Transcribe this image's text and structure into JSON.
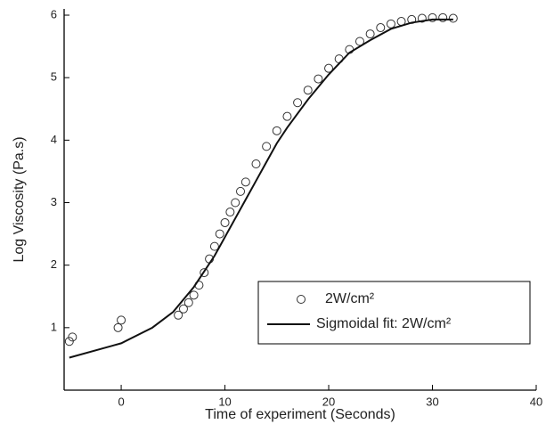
{
  "chart_data": {
    "type": "scatter",
    "x_label": "Time of experiment (Seconds)",
    "y_label": "Log Viscosity (Pa.s)",
    "xlim": [
      -5.5,
      40
    ],
    "xticks": [
      0,
      10,
      20,
      30,
      40
    ],
    "ylim": [
      0,
      6.1
    ],
    "yticks": [
      1,
      2,
      3,
      4,
      5,
      6
    ],
    "legend": "lower right",
    "series": [
      {
        "name": "2W/cm²",
        "type": "scatter",
        "color": "#333333",
        "x": [
          -5,
          -4.7,
          -0.3,
          0,
          5.5,
          6,
          6.5,
          7,
          7.5,
          8,
          8.5,
          9,
          9.5,
          10,
          10.5,
          11,
          11.5,
          12,
          13,
          14,
          15,
          16,
          17,
          18,
          19,
          20,
          21,
          22,
          23,
          24,
          25,
          26,
          27,
          28,
          29,
          30,
          31,
          32
        ],
        "values": [
          0.78,
          0.85,
          1.0,
          1.12,
          1.2,
          1.3,
          1.4,
          1.52,
          1.68,
          1.88,
          2.1,
          2.3,
          2.5,
          2.68,
          2.85,
          3.0,
          3.18,
          3.33,
          3.62,
          3.9,
          4.15,
          4.38,
          4.6,
          4.8,
          4.98,
          5.15,
          5.3,
          5.45,
          5.58,
          5.7,
          5.8,
          5.86,
          5.9,
          5.93,
          5.95,
          5.96,
          5.96,
          5.95
        ]
      },
      {
        "name": "Sigmoidal fit: 2W/cm²",
        "type": "line",
        "color": "#111111",
        "x": [
          -5,
          0,
          3,
          5,
          7,
          8,
          9,
          10,
          11,
          12,
          13,
          14,
          15,
          16,
          18,
          20,
          22,
          24,
          26,
          28,
          30,
          32
        ],
        "values": [
          0.52,
          0.75,
          1.0,
          1.25,
          1.65,
          1.9,
          2.15,
          2.45,
          2.75,
          3.05,
          3.35,
          3.65,
          3.95,
          4.2,
          4.65,
          5.05,
          5.4,
          5.6,
          5.78,
          5.88,
          5.93,
          5.93
        ]
      }
    ]
  }
}
